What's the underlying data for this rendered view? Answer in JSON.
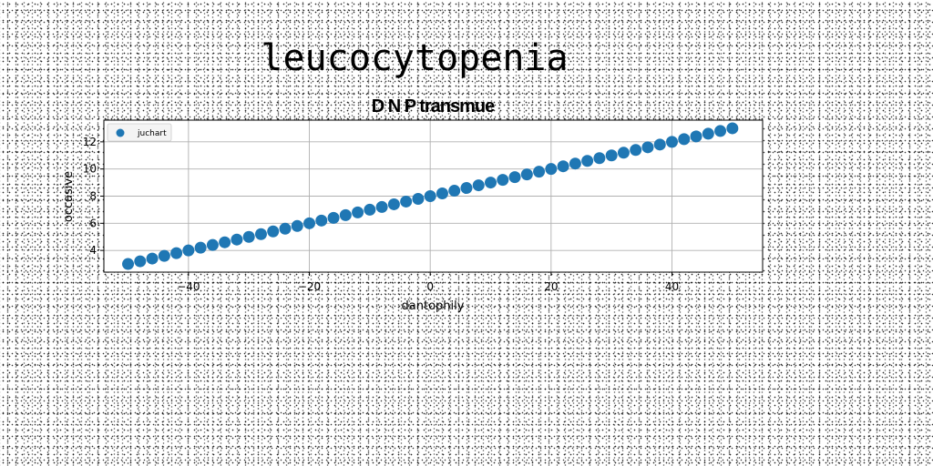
{
  "figure": {
    "title": "leucocytopenia",
    "subtitle": "D N P transmue"
  },
  "chart_data": {
    "type": "scatter",
    "title": "D N P transmue",
    "xlabel": "dantophily",
    "ylabel": "occasive",
    "xlim": [
      -54,
      55
    ],
    "ylim": [
      2.4,
      13.6
    ],
    "xticks": [
      -40,
      -20,
      0,
      20,
      40
    ],
    "xtick_labels": [
      "−40",
      "−20",
      "0",
      "20",
      "40"
    ],
    "yticks": [
      4,
      6,
      8,
      10,
      12
    ],
    "ytick_labels": [
      "4",
      "6",
      "8",
      "10",
      "12"
    ],
    "grid": true,
    "legend_position": "top-left",
    "series": [
      {
        "name": "juchart",
        "color": "#1f77b4",
        "x": [
          -50,
          -48,
          -46,
          -44,
          -42,
          -40,
          -38,
          -36,
          -34,
          -32,
          -30,
          -28,
          -26,
          -24,
          -22,
          -20,
          -18,
          -16,
          -14,
          -12,
          -10,
          -8,
          -6,
          -4,
          -2,
          0,
          2,
          4,
          6,
          8,
          10,
          12,
          14,
          16,
          18,
          20,
          22,
          24,
          26,
          28,
          30,
          32,
          34,
          36,
          38,
          40,
          42,
          44,
          46,
          48,
          50
        ],
        "y": [
          3.0,
          3.2,
          3.4,
          3.6,
          3.8,
          4.0,
          4.2,
          4.4,
          4.6,
          4.8,
          5.0,
          5.2,
          5.4,
          5.6,
          5.8,
          6.0,
          6.2,
          6.4,
          6.6,
          6.8,
          7.0,
          7.2,
          7.4,
          7.6,
          7.8,
          8.0,
          8.2,
          8.4,
          8.6,
          8.8,
          9.0,
          9.2,
          9.4,
          9.6,
          9.8,
          10.0,
          10.2,
          10.4,
          10.6,
          10.8,
          11.0,
          11.2,
          11.4,
          11.6,
          11.8,
          12.0,
          12.2,
          12.4,
          12.6,
          12.8,
          13.0
        ]
      }
    ]
  }
}
